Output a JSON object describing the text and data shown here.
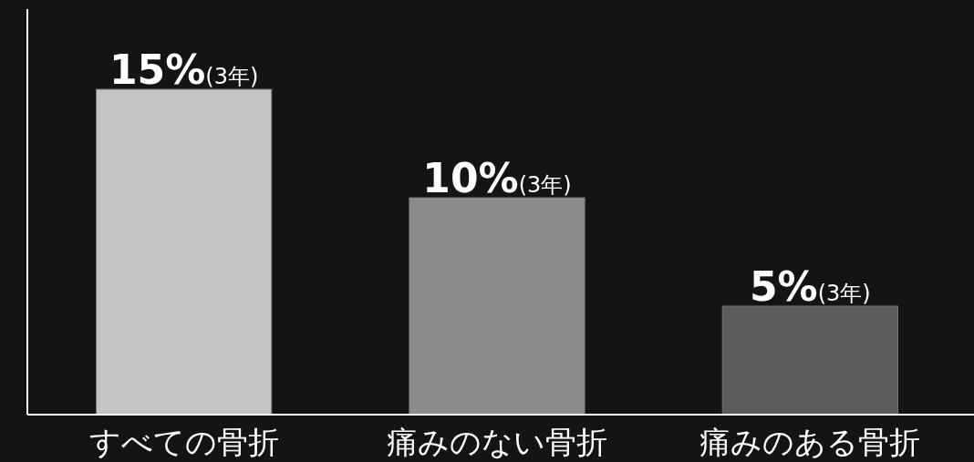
{
  "chart_data": {
    "type": "bar",
    "categories": [
      "すべての骨折",
      "痛みのない骨折",
      "痛みのある骨折"
    ],
    "values": [
      15,
      10,
      5
    ],
    "colors": [
      "#c4c4c4",
      "#8c8c8c",
      "#5c5c5c"
    ],
    "value_labels": [
      "15%(3年)",
      "10%(3年)",
      "5%(3年)"
    ]
  }
}
